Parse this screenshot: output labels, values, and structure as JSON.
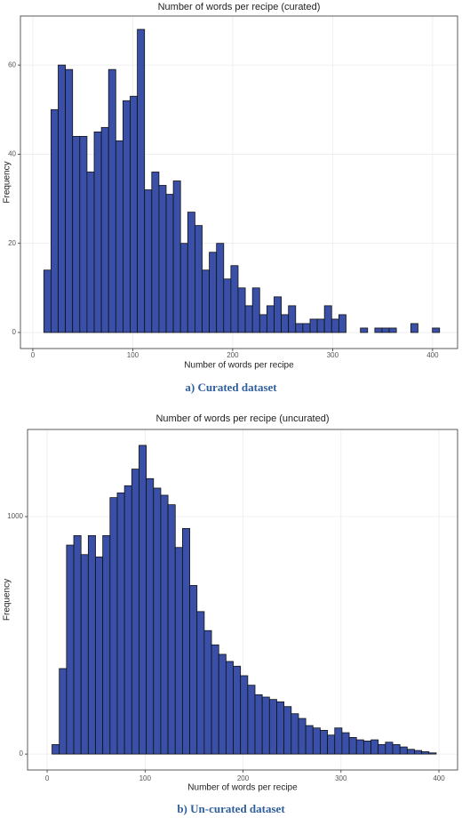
{
  "chart_data": [
    {
      "type": "histogram",
      "title": "Number of words per recipe (curated)",
      "x_label": "Number of words per recipe",
      "y_label": "Frequency",
      "caption": "a) Curated dataset",
      "bins": [
        11.0,
        18.2,
        25.4,
        32.6,
        39.8,
        47.0,
        54.2,
        61.4,
        68.6,
        75.8,
        83.0,
        90.2,
        97.4,
        104.6,
        111.8,
        119.0,
        126.2,
        133.4,
        140.6,
        147.8,
        155.0,
        162.2,
        169.4,
        176.6,
        183.8,
        191.0,
        198.2,
        205.4,
        212.6,
        219.8,
        227.0,
        234.2,
        241.4,
        248.6,
        255.8,
        263.0,
        270.2,
        277.4,
        284.6,
        291.8,
        299.0,
        306.2,
        313.4,
        320.6,
        327.8,
        335.0,
        342.2,
        349.4,
        356.6,
        363.8,
        371.0,
        378.2,
        385.4,
        392.6,
        399.8,
        407.0
      ],
      "values": [
        14,
        50,
        60,
        59,
        44,
        44,
        36,
        45,
        46,
        59,
        43,
        52,
        53,
        68,
        32,
        36,
        33,
        31,
        34,
        20,
        27,
        24,
        14,
        18,
        20,
        12,
        15,
        10,
        6,
        10,
        4,
        6,
        8,
        4,
        6,
        2,
        2,
        3,
        3,
        6,
        3,
        4,
        0,
        0,
        1,
        0,
        1,
        1,
        1,
        0,
        0,
        2,
        0,
        0,
        1
      ],
      "color": "#3a50a8",
      "xlim": [
        -12.4,
        425
      ],
      "ylim": [
        -3.6,
        71
      ],
      "xticks": [
        0,
        100,
        200,
        300,
        400
      ],
      "yticks": [
        0,
        20,
        40,
        60
      ],
      "grid": true
    },
    {
      "type": "histogram",
      "title": "Number of words per recipe (uncurated)",
      "x_label": "Number of words per recipe",
      "y_label": "Frequency",
      "caption": "b) Un-curated dataset",
      "bins": [
        5,
        12.4,
        19.8,
        27.2,
        34.6,
        42,
        49.4,
        56.8,
        64.2,
        71.6,
        79,
        86.4,
        93.8,
        101.2,
        108.6,
        116,
        123.4,
        130.8,
        138.2,
        145.6,
        153,
        160.4,
        167.8,
        175.2,
        182.6,
        190,
        197.4,
        204.8,
        212.2,
        219.6,
        227,
        234.4,
        241.8,
        249.2,
        256.6,
        264,
        271.4,
        278.8,
        286.2,
        293.6,
        301,
        308.4,
        315.8,
        323.2,
        330.6,
        338,
        345.4,
        352.8,
        360.2,
        367.6,
        375,
        382.4,
        389.8,
        397.2
      ],
      "values": [
        40,
        360,
        880,
        920,
        840,
        920,
        830,
        920,
        1080,
        1100,
        1130,
        1200,
        1300,
        1160,
        1120,
        1090,
        1050,
        870,
        950,
        710,
        600,
        520,
        460,
        420,
        390,
        370,
        330,
        290,
        250,
        240,
        230,
        220,
        200,
        170,
        150,
        120,
        110,
        100,
        80,
        110,
        90,
        70,
        60,
        55,
        60,
        40,
        50,
        40,
        30,
        20,
        15,
        10,
        5
      ],
      "color": "#3a50a8",
      "xlim": [
        -20,
        419
      ],
      "ylim": [
        -67,
        1367
      ],
      "xticks": [
        0,
        100,
        200,
        300,
        400
      ],
      "yticks": [
        0,
        1000
      ],
      "grid": true
    }
  ]
}
